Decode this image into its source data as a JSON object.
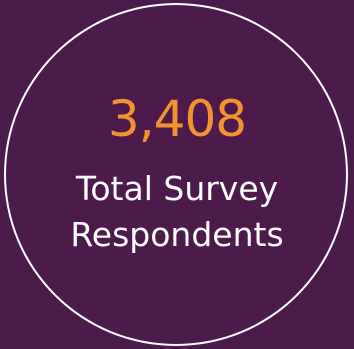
{
  "stat": {
    "value": "3,408",
    "label_line1": "Total Survey",
    "label_line2": "Respondents"
  },
  "colors": {
    "background": "#4c1b4c",
    "accent": "#f3922f",
    "text": "#ffffff",
    "ring": "#ffffff"
  }
}
